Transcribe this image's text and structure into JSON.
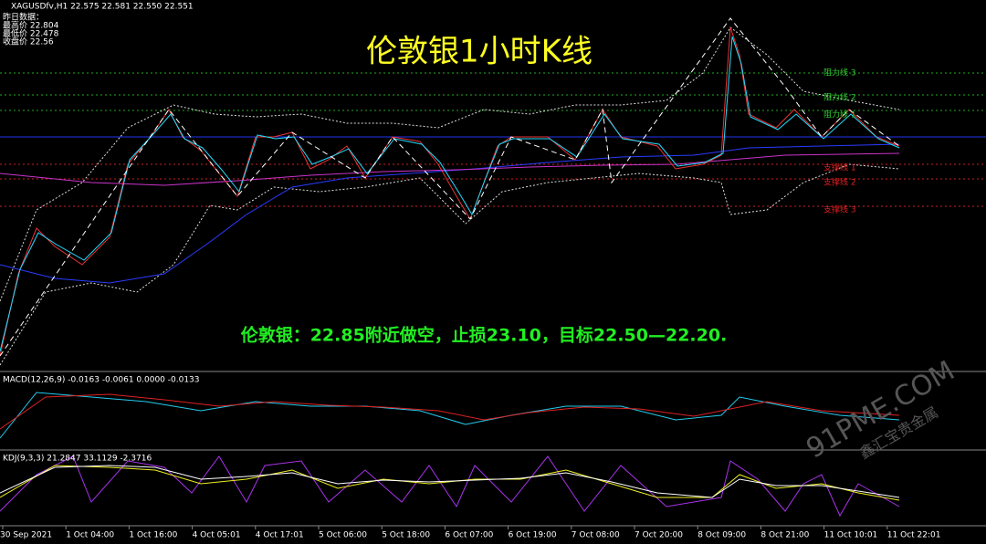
{
  "header": {
    "symbol": "XAGUSDfv,H1  22.575 22.581 22.550 22.551",
    "info": [
      "昨日数据：",
      "最高价 22.804",
      "最低价 22.478",
      "收盘价 22.56"
    ]
  },
  "title": "伦敦银1小时K线",
  "levels": [
    "阻力线 3",
    "阻力线 2",
    "阻力线 1",
    "支撑线 1",
    "支撑线 2",
    "支撑线 3"
  ],
  "note": "伦敦银：22.85附近做空，止损23.10，目标22.50—22.20.",
  "macd_label": "MACD(12,26,9) -0.0163 -0.0061 0.0000 -0.0133",
  "kdj_label": "KDJ(9,3,3) 21.2847 33.1129 -2.3716",
  "x_labels": [
    "30 Sep 2021",
    "1 Oct 04:00",
    "1 Oct 16:00",
    "4 Oct 05:01",
    "4 Oct 17:01",
    "5 Oct 06:00",
    "5 Oct 18:00",
    "6 Oct 07:00",
    "6 Oct 19:00",
    "7 Oct 08:00",
    "7 Oct 20:00",
    "8 Oct 09:00",
    "8 Oct 21:00",
    "11 Oct 10:01",
    "11 Oct 22:01"
  ],
  "watermark": {
    "site": "91PME.COM",
    "company": "鑫汇宝贵金属"
  }
}
